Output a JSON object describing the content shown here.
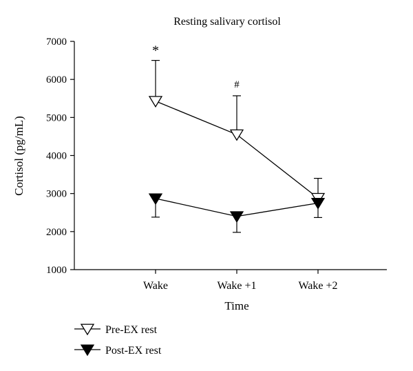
{
  "chart_data": {
    "type": "line",
    "title": "Resting salivary cortisol",
    "xlabel": "Time",
    "ylabel": "Cortisol (pg/mL)",
    "categories": [
      "Wake",
      "Wake +1",
      "Wake +2"
    ],
    "ylim": [
      1000,
      7000
    ],
    "yticks": [
      1000,
      2000,
      3000,
      4000,
      5000,
      6000,
      7000
    ],
    "grid": false,
    "legend_position": "bottom-left",
    "series": [
      {
        "name": "Pre-EX rest",
        "marker": "open-down-triangle",
        "values": [
          5430,
          4550,
          2880
        ],
        "error_up": [
          1070,
          1020,
          520
        ],
        "annotations": [
          "*",
          "#",
          ""
        ]
      },
      {
        "name": "Post-EX rest",
        "marker": "filled-down-triangle",
        "values": [
          2870,
          2400,
          2750
        ],
        "error_down": [
          490,
          420,
          380
        ]
      }
    ]
  }
}
